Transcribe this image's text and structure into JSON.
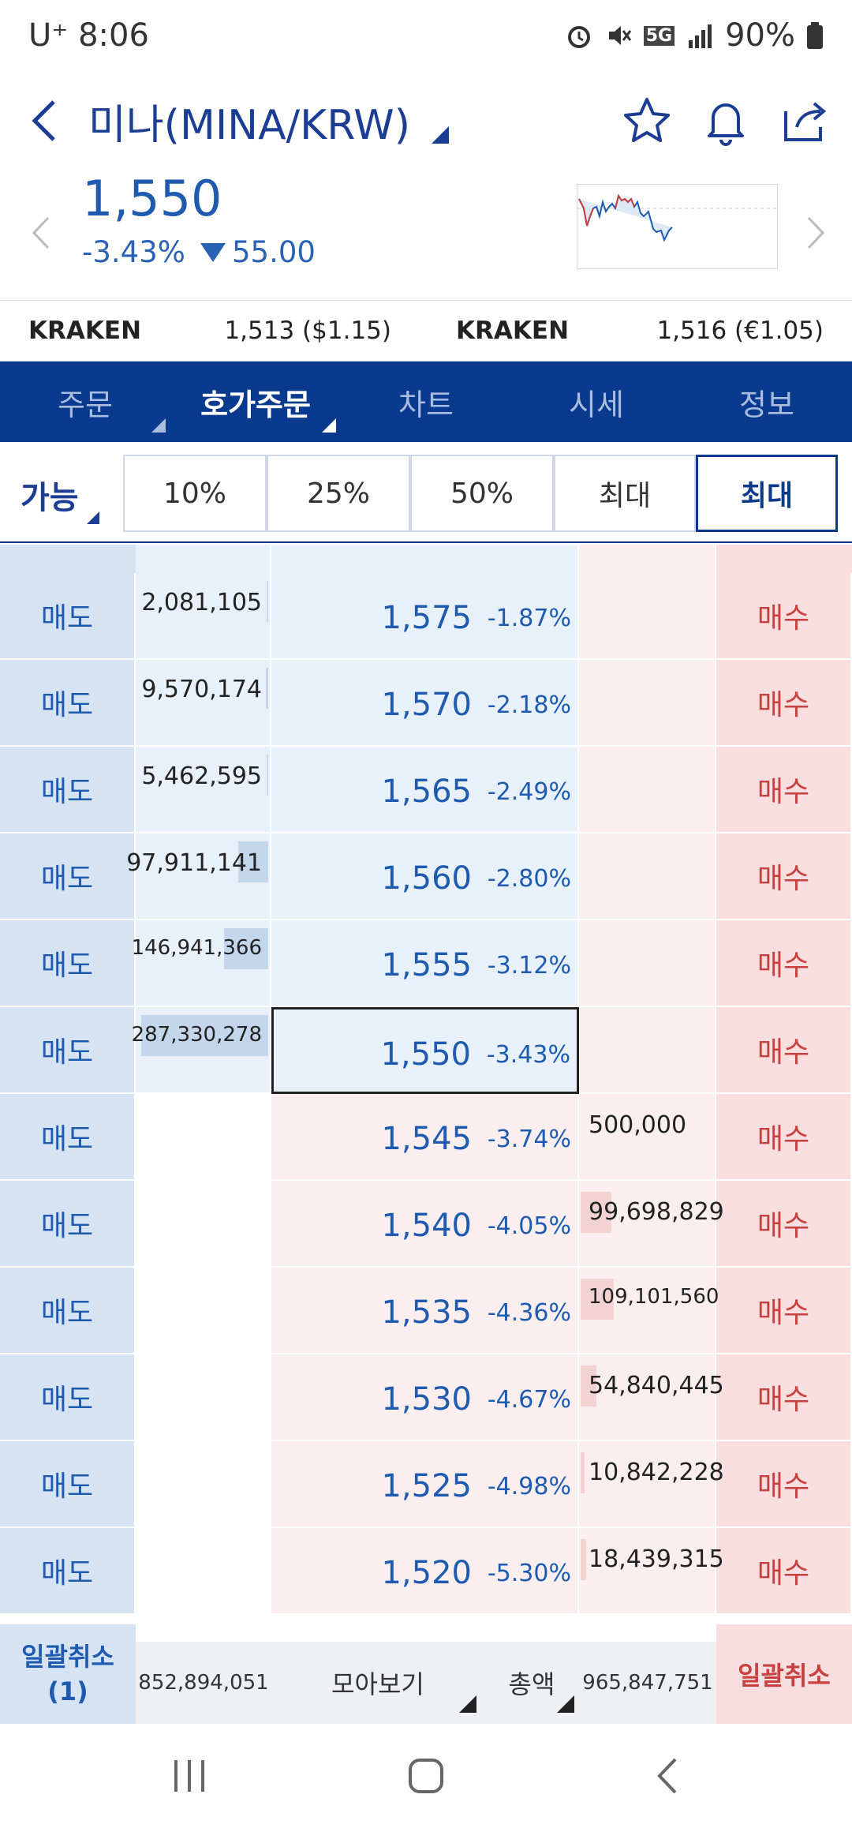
{
  "status_bar": {
    "carrier": "U⁺ 8:06",
    "battery": "90%",
    "network": "5G"
  },
  "header": {
    "title": "미나(MINA/KRW)"
  },
  "price": {
    "current": "1,550",
    "change_pct": "-3.43%",
    "change_abs": "55.00"
  },
  "kraken": {
    "left_label": "KRAKEN",
    "left_value": "1,513 ($1.15)",
    "right_label": "KRAKEN",
    "right_value": "1,516 (€1.05)"
  },
  "tabs": [
    {
      "label": "주문"
    },
    {
      "label": "호가주문"
    },
    {
      "label": "차트"
    },
    {
      "label": "시세"
    },
    {
      "label": "정보"
    }
  ],
  "qty": {
    "label": "가능",
    "buttons": [
      "10%",
      "25%",
      "50%",
      "최대",
      "최대"
    ]
  },
  "orderbook": {
    "sell_label": "매도",
    "buy_label": "매수",
    "rows": [
      {
        "price": "1,575",
        "rate": "-1.87%",
        "ask_vol": "2,081,105",
        "ask_fill": 0.01,
        "bid_vol": "",
        "bid_fill": 0
      },
      {
        "price": "1,570",
        "rate": "-2.18%",
        "ask_vol": "9,570,174",
        "ask_fill": 0.02,
        "bid_vol": "",
        "bid_fill": 0
      },
      {
        "price": "1,565",
        "rate": "-2.49%",
        "ask_vol": "5,462,595",
        "ask_fill": 0.01,
        "bid_vol": "",
        "bid_fill": 0
      },
      {
        "price": "1,560",
        "rate": "-2.80%",
        "ask_vol": "97,911,141",
        "ask_fill": 0.23,
        "bid_vol": "",
        "bid_fill": 0
      },
      {
        "price": "1,555",
        "rate": "-3.12%",
        "ask_vol": "146,941,366",
        "ask_fill": 0.34,
        "bid_vol": "",
        "bid_fill": 0
      },
      {
        "price": "1,550",
        "rate": "-3.43%",
        "ask_vol": "287,330,278",
        "ask_fill": 0.97,
        "bid_vol": "",
        "bid_fill": 0,
        "current": true
      },
      {
        "price": "1,545",
        "rate": "-3.74%",
        "ask_vol": "",
        "ask_fill": 0,
        "bid_vol": "500,000",
        "bid_fill": 0
      },
      {
        "price": "1,540",
        "rate": "-4.05%",
        "ask_vol": "",
        "ask_fill": 0,
        "bid_vol": "99,698,829",
        "bid_fill": 0.23
      },
      {
        "price": "1,535",
        "rate": "-4.36%",
        "ask_vol": "",
        "ask_fill": 0,
        "bid_vol": "109,101,560",
        "bid_fill": 0.25
      },
      {
        "price": "1,530",
        "rate": "-4.67%",
        "ask_vol": "",
        "ask_fill": 0,
        "bid_vol": "54,840,445",
        "bid_fill": 0.12
      },
      {
        "price": "1,525",
        "rate": "-4.98%",
        "ask_vol": "",
        "ask_fill": 0,
        "bid_vol": "10,842,228",
        "bid_fill": 0.03
      },
      {
        "price": "1,520",
        "rate": "-5.30%",
        "ask_vol": "",
        "ask_fill": 0,
        "bid_vol": "18,439,315",
        "bid_fill": 0.04
      }
    ]
  },
  "footer": {
    "cancel_left_line1": "일괄취소",
    "cancel_left_line2": "(1)",
    "ask_total": "852,894,051",
    "mode": "모아보기",
    "total": "총액",
    "bid_total": "965,847,751",
    "cancel_right": "일괄취소"
  },
  "colors": {
    "brand": "#0a3a8e",
    "ask_blue": "#1e5bb0",
    "bid_red": "#c94040"
  }
}
